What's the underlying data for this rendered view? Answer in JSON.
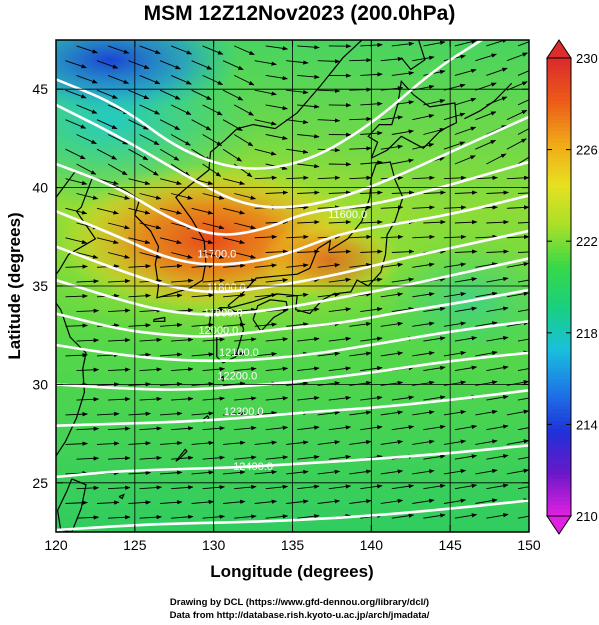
{
  "title": "MSM 12Z12Nov2023 (200.0hPa)",
  "map": {
    "lon_range": [
      120,
      150
    ],
    "lat_range": [
      22.5,
      47.5
    ],
    "xlabel": "Longitude (degrees)",
    "ylabel": "Latitude  (degrees)",
    "x_ticks": [
      "120",
      "125",
      "130",
      "135",
      "140",
      "145",
      "150"
    ],
    "y_ticks": [
      "25",
      "30",
      "35",
      "40",
      "45"
    ],
    "grid_lons": [
      125,
      130,
      135,
      140,
      145
    ],
    "grid_lats": [
      25,
      30,
      35,
      40,
      45
    ],
    "contour_labels": [
      {
        "text": "11700.0",
        "lon": 130.2,
        "lat": 36.6
      },
      {
        "text": "11600.0",
        "lon": 138.5,
        "lat": 38.6
      },
      {
        "text": "11800.0",
        "lon": 130.8,
        "lat": 34.9
      },
      {
        "text": "11900.0",
        "lon": 130.6,
        "lat": 33.6
      },
      {
        "text": "12000.0",
        "lon": 130.3,
        "lat": 32.7
      },
      {
        "text": "12100.0",
        "lon": 131.6,
        "lat": 31.6
      },
      {
        "text": "12200.0",
        "lon": 131.5,
        "lat": 30.4
      },
      {
        "text": "12300.0",
        "lon": 131.9,
        "lat": 28.6
      },
      {
        "text": "12400.0",
        "lon": 132.5,
        "lat": 25.8
      }
    ],
    "colors": {
      "contour": "#ffffff",
      "vector": "#000000",
      "coast": "#000000"
    }
  },
  "colorbar": {
    "min": 210,
    "max": 230,
    "tick_labels": [
      "230",
      "226",
      "222",
      "218",
      "214",
      "210"
    ],
    "palette": [
      "#e020e0",
      "#6a18c8",
      "#2030d8",
      "#1e78e8",
      "#18c0dc",
      "#18d080",
      "#38d848",
      "#a8e028",
      "#e8e020",
      "#f0a818",
      "#ec5c18",
      "#dc2c2c"
    ]
  },
  "credits": [
    "Drawing by DCL (https://www.gfd-dennou.org/library/dcl/)",
    "Data from http://database.rish.kyoto-u.ac.jp/arch/jmadata/"
  ]
}
